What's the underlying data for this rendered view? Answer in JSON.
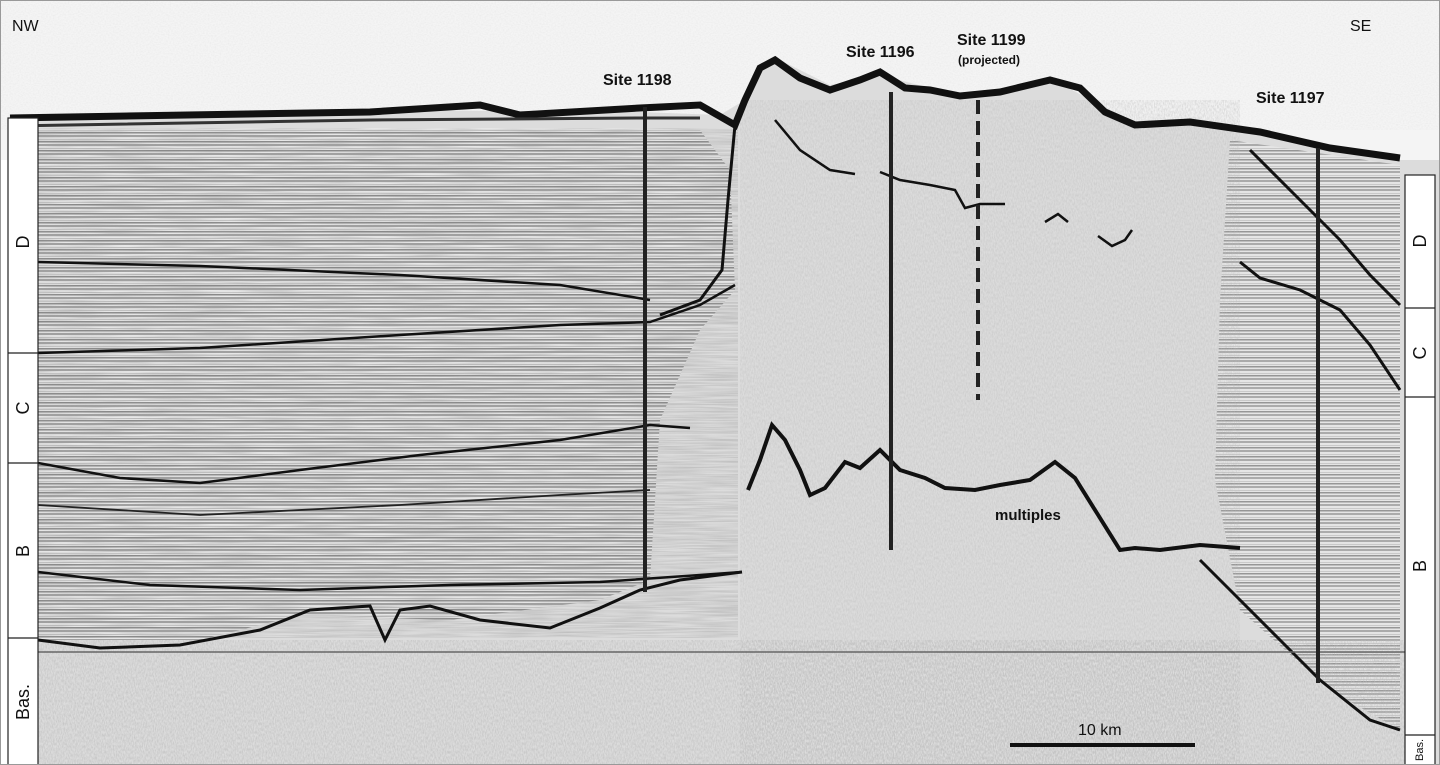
{
  "direction": {
    "left": "NW",
    "right": "SE"
  },
  "sites": {
    "s1198": "Site 1198",
    "s1196": "Site 1196",
    "s1199": "Site 1199",
    "s1199_note": "(projected)",
    "s1197": "Site 1197"
  },
  "units_left": {
    "d": "D",
    "c": "C",
    "b": "B",
    "bas": "Bas."
  },
  "units_right": {
    "d": "D",
    "c": "C",
    "b": "B",
    "bas": "Bas."
  },
  "annotations": {
    "multiples": "multiples"
  },
  "scale": {
    "label": "10 km"
  }
}
